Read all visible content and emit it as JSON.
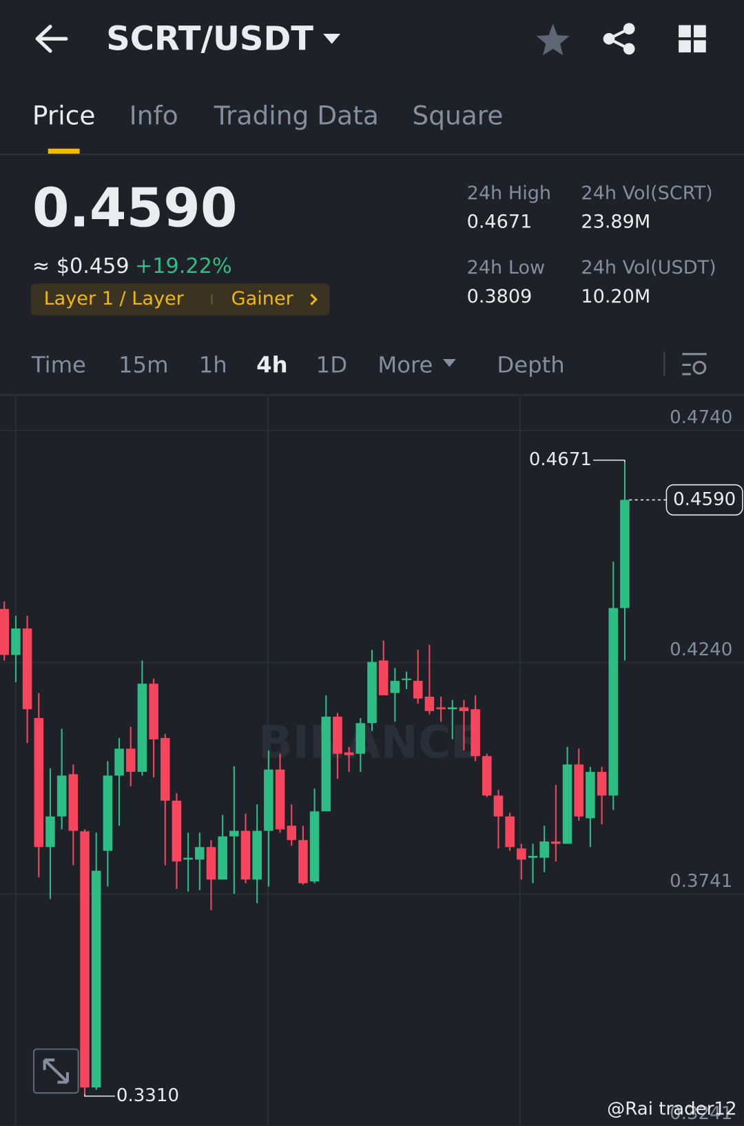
{
  "header": {
    "title": "SCRT/USDT"
  },
  "tabs": [
    "Price",
    "Info",
    "Trading Data",
    "Square"
  ],
  "active_tab": 0,
  "summary": {
    "price": "0.4590",
    "approx": "≈ $0.459",
    "change": "+19.22%",
    "tags": [
      "Layer 1 / Layer",
      "Gainer"
    ]
  },
  "stats": [
    {
      "label": "24h High",
      "value": "0.4671"
    },
    {
      "label": "24h Vol(SCRT)",
      "value": "23.89M"
    },
    {
      "label": "24h Low",
      "value": "0.3809"
    },
    {
      "label": "24h Vol(USDT)",
      "value": "10.20M"
    }
  ],
  "intervals": [
    "Time",
    "15m",
    "1h",
    "4h",
    "1D",
    "More",
    "Depth"
  ],
  "active_interval": 3,
  "chart_data": {
    "type": "candlestick",
    "up_color": "#2ebd85",
    "down_color": "#f6465d",
    "ylim": [
      0.3241,
      0.4813
    ],
    "yticks": [
      {
        "value": 0.474,
        "label": "0.4740"
      },
      {
        "value": 0.424,
        "label": "0.4240"
      },
      {
        "value": 0.3741,
        "label": "0.3741"
      },
      {
        "value": 0.3241,
        "label": "0.3241"
      }
    ],
    "grid": true,
    "open": [
      0.4355,
      0.4256,
      0.4313,
      0.412,
      0.3842,
      0.3908,
      0.3999,
      0.3876,
      0.3324,
      0.3834,
      0.3996,
      0.4054,
      0.4004,
      0.4194,
      0.4077,
      0.3942,
      0.3815,
      0.3815,
      0.3842,
      0.3772,
      0.3865,
      0.3877,
      0.3772,
      0.3877,
      0.4009,
      0.3888,
      0.3857,
      0.3768,
      0.3919,
      0.4123,
      0.4046,
      0.4043,
      0.4109,
      0.4244,
      0.4174,
      0.4202,
      0.42,
      0.4166,
      0.4143,
      0.4139,
      0.4143,
      0.4139,
      0.4038,
      0.3953,
      0.3908,
      0.3839,
      0.3819,
      0.3819,
      0.3854,
      0.3849,
      0.402,
      0.3904,
      0.4004,
      0.3953,
      0.4357
    ],
    "high": [
      0.4371,
      0.434,
      0.434,
      0.4174,
      0.4012,
      0.4097,
      0.402,
      0.388,
      0.3873,
      0.4027,
      0.4077,
      0.4101,
      0.4244,
      0.4205,
      0.4086,
      0.3958,
      0.3873,
      0.3873,
      0.3857,
      0.3911,
      0.4016,
      0.3914,
      0.3934,
      0.405,
      0.4043,
      0.3934,
      0.3888,
      0.3968,
      0.4169,
      0.4131,
      0.4058,
      0.412,
      0.4267,
      0.4287,
      0.4228,
      0.422,
      0.4267,
      0.4278,
      0.4166,
      0.4159,
      0.4159,
      0.4169,
      0.4043,
      0.3965,
      0.3916,
      0.3849,
      0.3849,
      0.3888,
      0.3976,
      0.4058,
      0.4054,
      0.4015,
      0.4015,
      0.4457,
      0.4671
    ],
    "low": [
      0.4244,
      0.4197,
      0.4066,
      0.3777,
      0.373,
      0.388,
      0.3803,
      0.331,
      0.3319,
      0.3757,
      0.3888,
      0.3973,
      0.3996,
      0.3992,
      0.3803,
      0.3752,
      0.3746,
      0.3749,
      0.3706,
      0.3772,
      0.3741,
      0.3764,
      0.3721,
      0.3757,
      0.3873,
      0.3845,
      0.3761,
      0.3764,
      0.3919,
      0.3989,
      0.4004,
      0.4004,
      0.4092,
      0.4169,
      0.4112,
      0.4182,
      0.4151,
      0.4128,
      0.4112,
      0.4074,
      0.405,
      0.4027,
      0.395,
      0.3839,
      0.3834,
      0.3772,
      0.3764,
      0.3788,
      0.3811,
      0.3849,
      0.3899,
      0.3842,
      0.3891,
      0.3922,
      0.4244
    ],
    "close": [
      0.4256,
      0.4313,
      0.4139,
      0.3842,
      0.3908,
      0.3996,
      0.3877,
      0.3324,
      0.3791,
      0.3996,
      0.4054,
      0.4004,
      0.4194,
      0.4074,
      0.3942,
      0.3811,
      0.3819,
      0.3842,
      0.3772,
      0.3865,
      0.3877,
      0.3772,
      0.3877,
      0.4009,
      0.388,
      0.3857,
      0.3764,
      0.3919,
      0.4123,
      0.4043,
      0.404,
      0.4109,
      0.4241,
      0.4169,
      0.42,
      0.4205,
      0.4162,
      0.4135,
      0.4139,
      0.4143,
      0.4135,
      0.4038,
      0.3953,
      0.3908,
      0.3842,
      0.3815,
      0.3823,
      0.3854,
      0.3849,
      0.402,
      0.3908,
      0.4004,
      0.3953,
      0.4357,
      0.459
    ],
    "annotations": [
      {
        "kind": "high",
        "index": 54,
        "value": 0.4671,
        "label": "0.4671"
      },
      {
        "kind": "low",
        "index": 7,
        "value": 0.331,
        "label": "0.3310"
      },
      {
        "kind": "last",
        "index": 54,
        "value": 0.459,
        "label": "0.4590"
      }
    ],
    "watermark": "BINANCE"
  },
  "footer": {
    "credit": "@Rai trader12"
  }
}
